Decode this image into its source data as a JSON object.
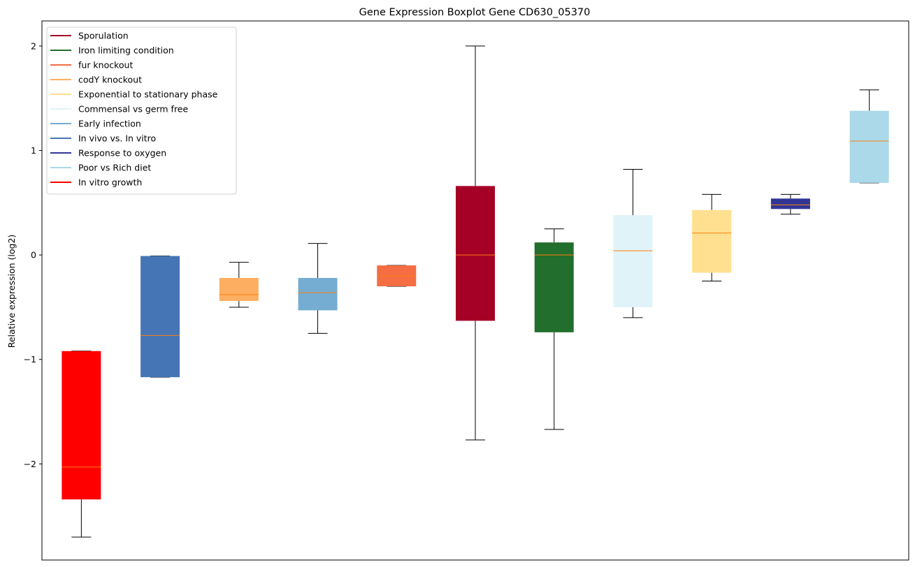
{
  "chart_data": {
    "type": "boxplot",
    "title": "Gene Expression Boxplot Gene CD630_05370",
    "xlabel": "",
    "ylabel": "Relative expression (log2)",
    "ylim": [
      -2.92,
      2.24
    ],
    "yticks": [
      -2,
      -1,
      0,
      1,
      2
    ],
    "ytick_labels": [
      "−2",
      "−1",
      "0",
      "1",
      "2"
    ],
    "legend_position": "top-left",
    "median_color": "#ff7f0e",
    "series": [
      {
        "name": "Sporulation",
        "color": "#a50026"
      },
      {
        "name": "Iron limiting condition",
        "color": "#226e2d"
      },
      {
        "name": "fur knockout",
        "color": "#f46d43"
      },
      {
        "name": "codY knockout",
        "color": "#fdae61"
      },
      {
        "name": "Exponential to stationary phase",
        "color": "#fee090"
      },
      {
        "name": "Commensal vs germ free",
        "color": "#e0f3f8"
      },
      {
        "name": "Early infection",
        "color": "#74add1"
      },
      {
        "name": "In vivo vs. In vitro",
        "color": "#4575b4"
      },
      {
        "name": "Response to oxygen",
        "color": "#313695"
      },
      {
        "name": "Poor vs Rich diet",
        "color": "#abd9e9"
      },
      {
        "name": "In vitro growth",
        "color": "#ff0000"
      }
    ],
    "boxes": [
      {
        "series": "In vitro growth",
        "whislo": -2.7,
        "q1": -2.34,
        "med": -2.03,
        "q3": -0.92,
        "whishi": -0.92
      },
      {
        "series": "In vivo vs. In vitro",
        "whislo": -1.17,
        "q1": -1.17,
        "med": -0.77,
        "q3": -0.01,
        "whishi": -0.01
      },
      {
        "series": "codY knockout",
        "whislo": -0.5,
        "q1": -0.44,
        "med": -0.38,
        "q3": -0.22,
        "whishi": -0.07
      },
      {
        "series": "Early infection",
        "whislo": -0.75,
        "q1": -0.53,
        "med": -0.36,
        "q3": -0.22,
        "whishi": 0.11
      },
      {
        "series": "fur knockout",
        "whislo": -0.3,
        "q1": -0.3,
        "med": -0.2,
        "q3": -0.1,
        "whishi": -0.1
      },
      {
        "series": "Sporulation",
        "whislo": -1.77,
        "q1": -0.63,
        "med": 0.0,
        "q3": 0.66,
        "whishi": 2.0
      },
      {
        "series": "Iron limiting condition",
        "whislo": -1.67,
        "q1": -0.74,
        "med": 0.0,
        "q3": 0.12,
        "whishi": 0.25
      },
      {
        "series": "Commensal vs germ free",
        "whislo": -0.6,
        "q1": -0.5,
        "med": 0.04,
        "q3": 0.38,
        "whishi": 0.82
      },
      {
        "series": "Exponential to stationary phase",
        "whislo": -0.25,
        "q1": -0.17,
        "med": 0.21,
        "q3": 0.43,
        "whishi": 0.58
      },
      {
        "series": "Response to oxygen",
        "whislo": 0.39,
        "q1": 0.44,
        "med": 0.48,
        "q3": 0.54,
        "whishi": 0.58
      },
      {
        "series": "Poor vs Rich diet",
        "whislo": 0.69,
        "q1": 0.69,
        "med": 1.09,
        "q3": 1.38,
        "whishi": 1.58
      }
    ]
  }
}
